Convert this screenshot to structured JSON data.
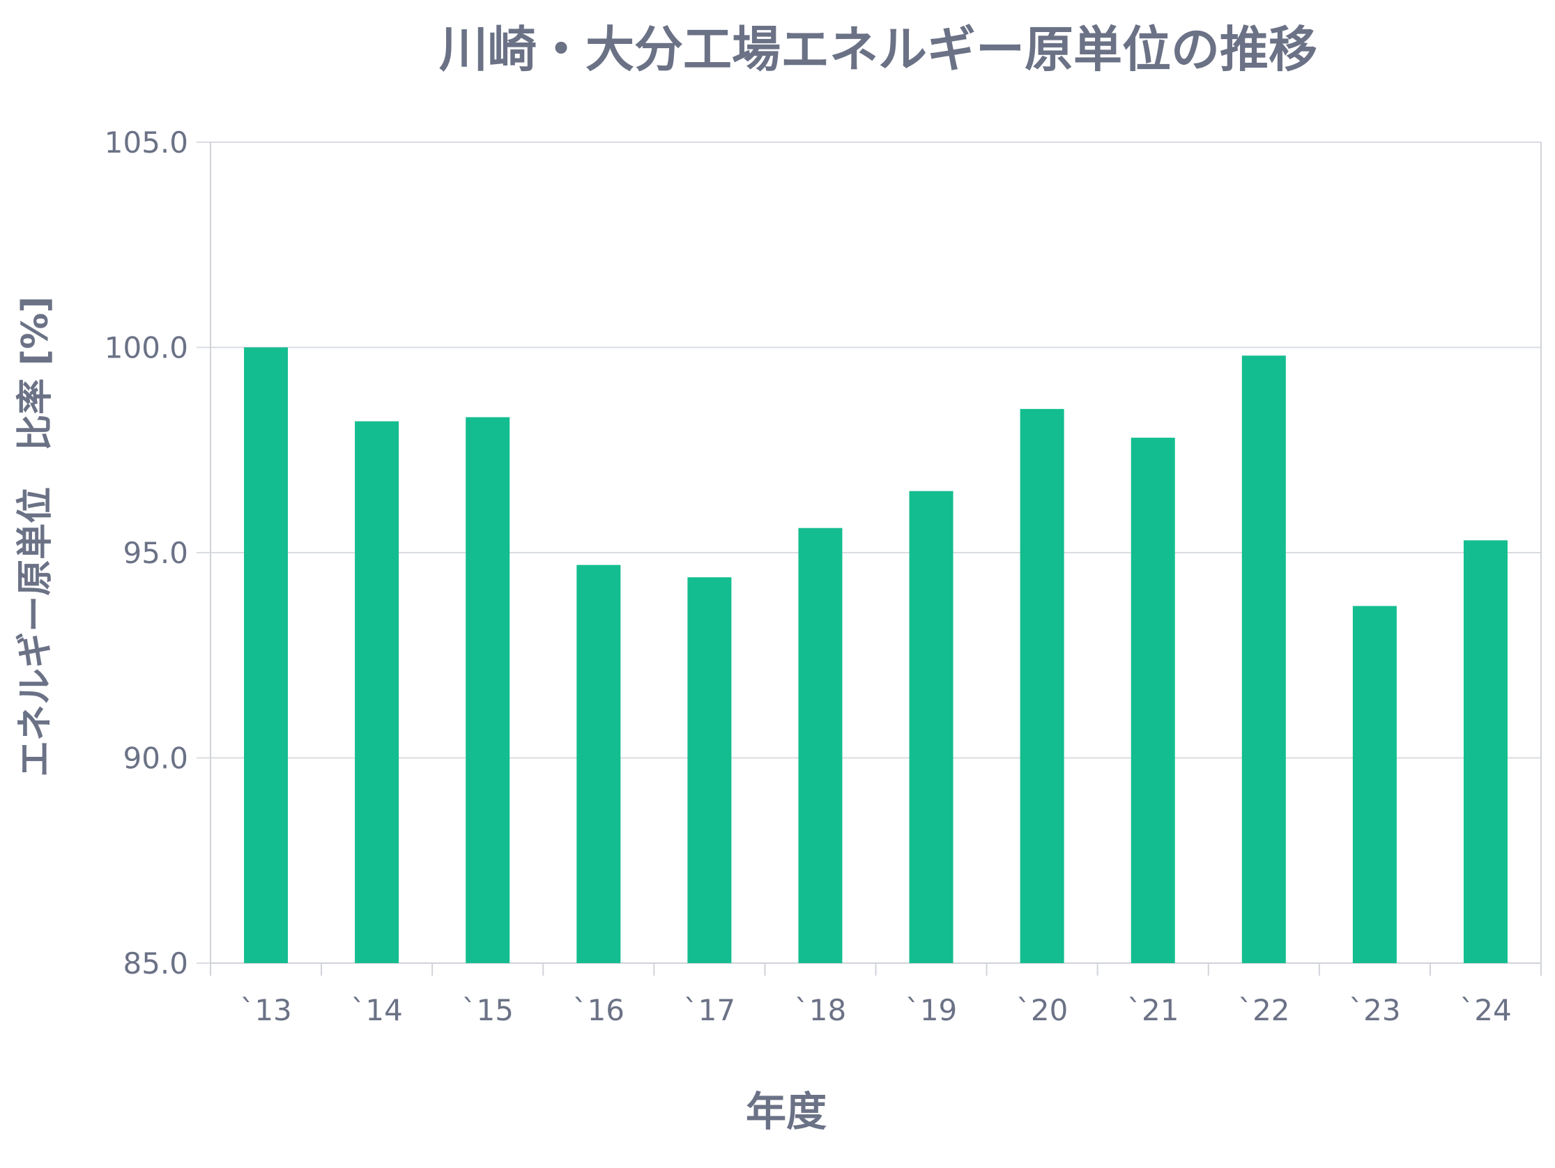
{
  "chart_data": {
    "type": "bar",
    "title": "川崎・大分工場エネルギー原単位の推移",
    "xlabel": "年度",
    "ylabel": "エネルギー原単位　比率 [%]",
    "categories": [
      "`13",
      "`14",
      "`15",
      "`16",
      "`17",
      "`18",
      "`19",
      "`20",
      "`21",
      "`22",
      "`23",
      "`24"
    ],
    "values": [
      100.0,
      98.2,
      98.3,
      94.7,
      94.4,
      95.6,
      96.5,
      98.5,
      97.8,
      99.8,
      93.7,
      95.3
    ],
    "ylim": [
      85.0,
      105.0
    ],
    "yticks": [
      "85.0",
      "90.0",
      "95.0",
      "100.0",
      "105.0"
    ],
    "grid": true,
    "legend": "none"
  },
  "colors": {
    "bar": "#13BD8F",
    "text": "#6B7286",
    "grid": "#D9DCE1",
    "axis": "#D0D3D9"
  }
}
